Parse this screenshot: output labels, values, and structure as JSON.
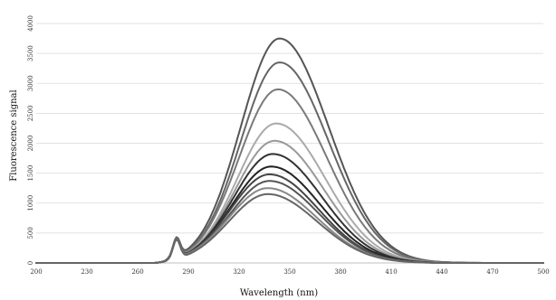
{
  "chart_data": {
    "type": "line",
    "title": "",
    "xlabel": "Wavelength (nm)",
    "ylabel": "Fluorescence signal",
    "xlim": [
      200,
      500
    ],
    "ylim": [
      0,
      4000
    ],
    "x_ticks": [
      200,
      230,
      260,
      290,
      320,
      350,
      380,
      410,
      440,
      470,
      500
    ],
    "y_ticks": [
      0,
      500,
      1000,
      1500,
      2000,
      2500,
      3000,
      3500,
      4000
    ],
    "grid": "horizontal",
    "legend": "none",
    "peak_model": {
      "baseline_end_nm": 270,
      "shoulder_center_nm": 283,
      "shoulder_height": 320,
      "note_series_values_are_peak_heights": true
    },
    "series": [
      {
        "peak_x": 344,
        "peak_y": 3750,
        "color": "#555555"
      },
      {
        "peak_x": 344,
        "peak_y": 3350,
        "color": "#666666"
      },
      {
        "peak_x": 343,
        "peak_y": 2900,
        "color": "#7a7a7a"
      },
      {
        "peak_x": 342,
        "peak_y": 2330,
        "color": "#aaaaaa"
      },
      {
        "peak_x": 341,
        "peak_y": 2040,
        "color": "#999999"
      },
      {
        "peak_x": 340,
        "peak_y": 1820,
        "color": "#333333"
      },
      {
        "peak_x": 339,
        "peak_y": 1610,
        "color": "#222222"
      },
      {
        "peak_x": 338,
        "peak_y": 1480,
        "color": "#444444"
      },
      {
        "peak_x": 338,
        "peak_y": 1370,
        "color": "#555555"
      },
      {
        "peak_x": 337,
        "peak_y": 1250,
        "color": "#888888"
      },
      {
        "peak_x": 337,
        "peak_y": 1150,
        "color": "#666666"
      }
    ]
  }
}
